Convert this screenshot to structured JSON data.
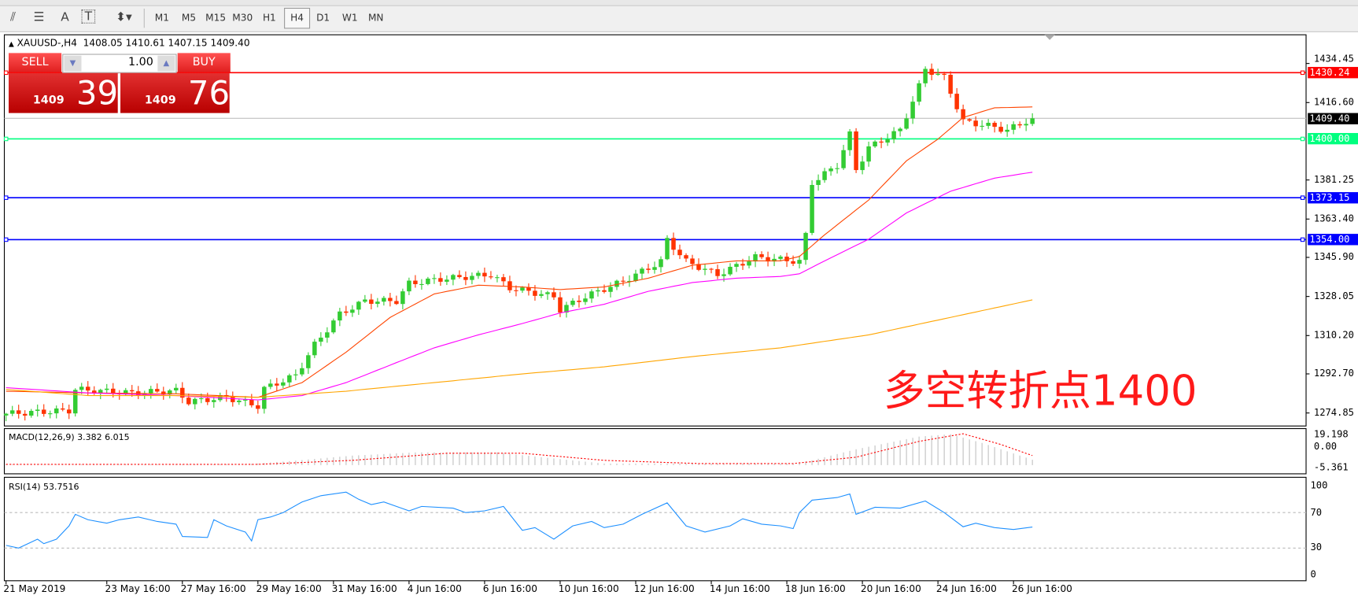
{
  "toolbar": {
    "tools": [
      {
        "icon": "fibonacci-expansion-icon",
        "glyph": "⫽"
      },
      {
        "icon": "fibonacci-fan-icon",
        "glyph": "☰"
      },
      {
        "icon": "text-icon",
        "glyph": "A"
      },
      {
        "icon": "text-label-icon",
        "glyph": "T"
      },
      {
        "icon": "arrows-dropdown-icon",
        "glyph": "⬍▾"
      }
    ],
    "timeframes": [
      "M1",
      "M5",
      "M15",
      "M30",
      "H1",
      "H4",
      "D1",
      "W1",
      "MN"
    ],
    "active_timeframe": "H4"
  },
  "chart": {
    "header": "XAUUSD-,H4  1408.05 1410.61 1407.15 1409.40",
    "header_arrow": "▲",
    "trade_panel": {
      "sell_label": "SELL",
      "buy_label": "BUY",
      "lot": "1.00",
      "sell_big": "1409",
      "sell_small": "39",
      "buy_big": "1409",
      "buy_small": "76"
    },
    "annotation": "多空转折点1400",
    "hlines": [
      {
        "price": 1430.24,
        "label": "1430.24",
        "color": "#ff0000"
      },
      {
        "price": 1409.4,
        "label": "1409.40",
        "color": "#000000",
        "line": "#c0c0c0"
      },
      {
        "price": 1400.0,
        "label": "1400.00",
        "color": "#00ff7f"
      },
      {
        "price": 1373.15,
        "label": "1373.15",
        "color": "#0000ff"
      },
      {
        "price": 1354.0,
        "label": "1354.00",
        "color": "#0000ff"
      }
    ]
  },
  "chart_data": [
    {
      "type": "candlestick",
      "symbol": "XAUUSD-",
      "timeframe": "H4",
      "y_ticks": [
        "1434.45",
        "1416.60",
        "1381.25",
        "1363.40",
        "1345.90",
        "1328.05",
        "1310.20",
        "1292.70",
        "1274.85"
      ],
      "ylim": [
        1274.85,
        1434.45
      ],
      "x_ticks": [
        {
          "i": 0,
          "label": "21 May 2019"
        },
        {
          "i": 16,
          "label": "23 May 16:00"
        },
        {
          "i": 28,
          "label": "27 May 16:00"
        },
        {
          "i": 40,
          "label": "29 May 16:00"
        },
        {
          "i": 52,
          "label": "31 May 16:00"
        },
        {
          "i": 64,
          "label": "4 Jun 16:00"
        },
        {
          "i": 76,
          "label": "6 Jun 16:00"
        },
        {
          "i": 88,
          "label": "10 Jun 16:00"
        },
        {
          "i": 100,
          "label": "12 Jun 16:00"
        },
        {
          "i": 112,
          "label": "14 Jun 16:00"
        },
        {
          "i": 124,
          "label": "18 Jun 16:00"
        },
        {
          "i": 136,
          "label": "20 Jun 16:00"
        },
        {
          "i": 148,
          "label": "24 Jun 16:00"
        },
        {
          "i": 160,
          "label": "26 Jun 16:00"
        }
      ],
      "bars": 164,
      "close_keypoints": [
        [
          0,
          1274.5
        ],
        [
          10,
          1276
        ],
        [
          11,
          1285.6
        ],
        [
          20,
          1284
        ],
        [
          27,
          1285
        ],
        [
          29,
          1280
        ],
        [
          35,
          1282
        ],
        [
          40,
          1278
        ],
        [
          41,
          1286
        ],
        [
          46,
          1292
        ],
        [
          49,
          1306
        ],
        [
          53,
          1320
        ],
        [
          57,
          1326
        ],
        [
          62,
          1326
        ],
        [
          64,
          1334
        ],
        [
          69,
          1336
        ],
        [
          77,
          1338
        ],
        [
          80,
          1332
        ],
        [
          87,
          1328
        ],
        [
          88,
          1322
        ],
        [
          92,
          1328
        ],
        [
          98,
          1335
        ],
        [
          104,
          1344
        ],
        [
          105,
          1354
        ],
        [
          108,
          1344
        ],
        [
          113,
          1338
        ],
        [
          119,
          1346
        ],
        [
          126,
          1344
        ],
        [
          127,
          1356
        ],
        [
          128,
          1380
        ],
        [
          132,
          1388
        ],
        [
          134,
          1402
        ],
        [
          135,
          1386
        ],
        [
          137,
          1396
        ],
        [
          142,
          1404
        ],
        [
          145,
          1424
        ],
        [
          146,
          1432
        ],
        [
          149,
          1428
        ],
        [
          152,
          1408
        ],
        [
          156,
          1406
        ],
        [
          159,
          1404
        ],
        [
          163,
          1409.4
        ]
      ],
      "up_color": "#33cc33",
      "down_color": "#ff3300",
      "moving_averages": [
        {
          "color": "#ff4500",
          "points": [
            [
              0,
              1284.8
            ],
            [
              13,
              1284
            ],
            [
              27,
              1283.6
            ],
            [
              40,
              1282
            ],
            [
              47,
              1288.7
            ],
            [
              54,
              1302.6
            ],
            [
              61,
              1318.5
            ],
            [
              68,
              1329.2
            ],
            [
              75,
              1333.2
            ],
            [
              82,
              1332.4
            ],
            [
              88,
              1331.2
            ],
            [
              95,
              1332.4
            ],
            [
              102,
              1336.4
            ],
            [
              109,
              1342.3
            ],
            [
              116,
              1344.3
            ],
            [
              123,
              1344.3
            ],
            [
              126,
              1346.3
            ],
            [
              130,
              1356.2
            ],
            [
              137,
              1372.1
            ],
            [
              143,
              1390
            ],
            [
              148,
              1399.9
            ],
            [
              152,
              1409.8
            ],
            [
              157,
              1414.2
            ],
            [
              163,
              1414.6
            ]
          ]
        },
        {
          "color": "#ff00ff",
          "points": [
            [
              0,
              1286.4
            ],
            [
              13,
              1284
            ],
            [
              27,
              1282.8
            ],
            [
              40,
              1280.8
            ],
            [
              47,
              1282.8
            ],
            [
              54,
              1288.7
            ],
            [
              61,
              1296.7
            ],
            [
              68,
              1304.6
            ],
            [
              75,
              1310.5
            ],
            [
              82,
              1315.7
            ],
            [
              88,
              1320.5
            ],
            [
              95,
              1324.5
            ],
            [
              102,
              1330.4
            ],
            [
              109,
              1334.4
            ],
            [
              116,
              1336.4
            ],
            [
              123,
              1337.2
            ],
            [
              126,
              1338.4
            ],
            [
              130,
              1344.3
            ],
            [
              137,
              1354.2
            ],
            [
              143,
              1366.2
            ],
            [
              150,
              1376.1
            ],
            [
              157,
              1382.1
            ],
            [
              163,
              1384.8
            ]
          ]
        },
        {
          "color": "#ffa500",
          "points": [
            [
              0,
              1285.6
            ],
            [
              13,
              1282.8
            ],
            [
              27,
              1282.8
            ],
            [
              40,
              1282
            ],
            [
              54,
              1284.8
            ],
            [
              68,
              1288.7
            ],
            [
              82,
              1292.7
            ],
            [
              95,
              1295.9
            ],
            [
              109,
              1300.6
            ],
            [
              123,
              1304.6
            ],
            [
              137,
              1310.5
            ],
            [
              150,
              1318.5
            ],
            [
              163,
              1326.5
            ]
          ]
        }
      ]
    },
    {
      "type": "bar",
      "title": "MACD(12,26,9) 3.382 6.015",
      "y_ticks": [
        "19.198",
        "0.00",
        "-5.361"
      ],
      "ylim": [
        -5.361,
        19.198
      ],
      "histogram_keypoints": [
        [
          0,
          0.3
        ],
        [
          38,
          0.5
        ],
        [
          45,
          2.5
        ],
        [
          55,
          6
        ],
        [
          65,
          8
        ],
        [
          78,
          8
        ],
        [
          85,
          5
        ],
        [
          95,
          1
        ],
        [
          110,
          1
        ],
        [
          125,
          1
        ],
        [
          128,
          3
        ],
        [
          135,
          10
        ],
        [
          145,
          18
        ],
        [
          150,
          19.5
        ],
        [
          155,
          14
        ],
        [
          163,
          3.382
        ]
      ],
      "signal_keypoints": [
        [
          0,
          0.5
        ],
        [
          40,
          0.5
        ],
        [
          55,
          3
        ],
        [
          70,
          7.5
        ],
        [
          82,
          7.5
        ],
        [
          95,
          3
        ],
        [
          110,
          1
        ],
        [
          125,
          1
        ],
        [
          135,
          5
        ],
        [
          145,
          15
        ],
        [
          152,
          19.8
        ],
        [
          158,
          13
        ],
        [
          163,
          6.015
        ]
      ],
      "histogram_color": "#c0c0c0",
      "signal_color": "#ff0000"
    },
    {
      "type": "line",
      "title": "RSI(14) 53.7516",
      "y_ticks": [
        "100",
        "70",
        "30",
        "0"
      ],
      "ylim": [
        0,
        100
      ],
      "levels": [
        70,
        30
      ],
      "color": "#1e90ff",
      "points": [
        [
          0,
          33
        ],
        [
          2,
          30
        ],
        [
          5,
          40
        ],
        [
          6,
          35
        ],
        [
          8,
          40
        ],
        [
          10,
          55
        ],
        [
          11,
          68
        ],
        [
          13,
          62
        ],
        [
          16,
          58
        ],
        [
          18,
          62
        ],
        [
          21,
          65
        ],
        [
          24,
          60
        ],
        [
          27,
          57
        ],
        [
          28,
          43
        ],
        [
          32,
          42
        ],
        [
          33,
          62
        ],
        [
          35,
          55
        ],
        [
          38,
          48
        ],
        [
          39,
          38
        ],
        [
          40,
          62
        ],
        [
          42,
          65
        ],
        [
          44,
          70
        ],
        [
          47,
          82
        ],
        [
          50,
          89
        ],
        [
          54,
          93
        ],
        [
          56,
          85
        ],
        [
          58,
          79
        ],
        [
          60,
          82
        ],
        [
          64,
          72
        ],
        [
          66,
          77
        ],
        [
          71,
          75
        ],
        [
          73,
          70
        ],
        [
          76,
          72
        ],
        [
          79,
          77
        ],
        [
          82,
          50
        ],
        [
          84,
          53
        ],
        [
          87,
          40
        ],
        [
          90,
          55
        ],
        [
          93,
          60
        ],
        [
          95,
          53
        ],
        [
          98,
          57
        ],
        [
          101,
          68
        ],
        [
          105,
          81
        ],
        [
          108,
          55
        ],
        [
          111,
          48
        ],
        [
          115,
          55
        ],
        [
          117,
          63
        ],
        [
          120,
          57
        ],
        [
          123,
          55
        ],
        [
          125,
          52
        ],
        [
          126,
          70
        ],
        [
          128,
          84
        ],
        [
          132,
          87
        ],
        [
          134,
          91
        ],
        [
          135,
          68
        ],
        [
          138,
          76
        ],
        [
          142,
          75
        ],
        [
          146,
          83
        ],
        [
          149,
          70
        ],
        [
          152,
          54
        ],
        [
          154,
          58
        ],
        [
          157,
          53
        ],
        [
          160,
          51
        ],
        [
          163,
          53.75
        ]
      ]
    }
  ]
}
